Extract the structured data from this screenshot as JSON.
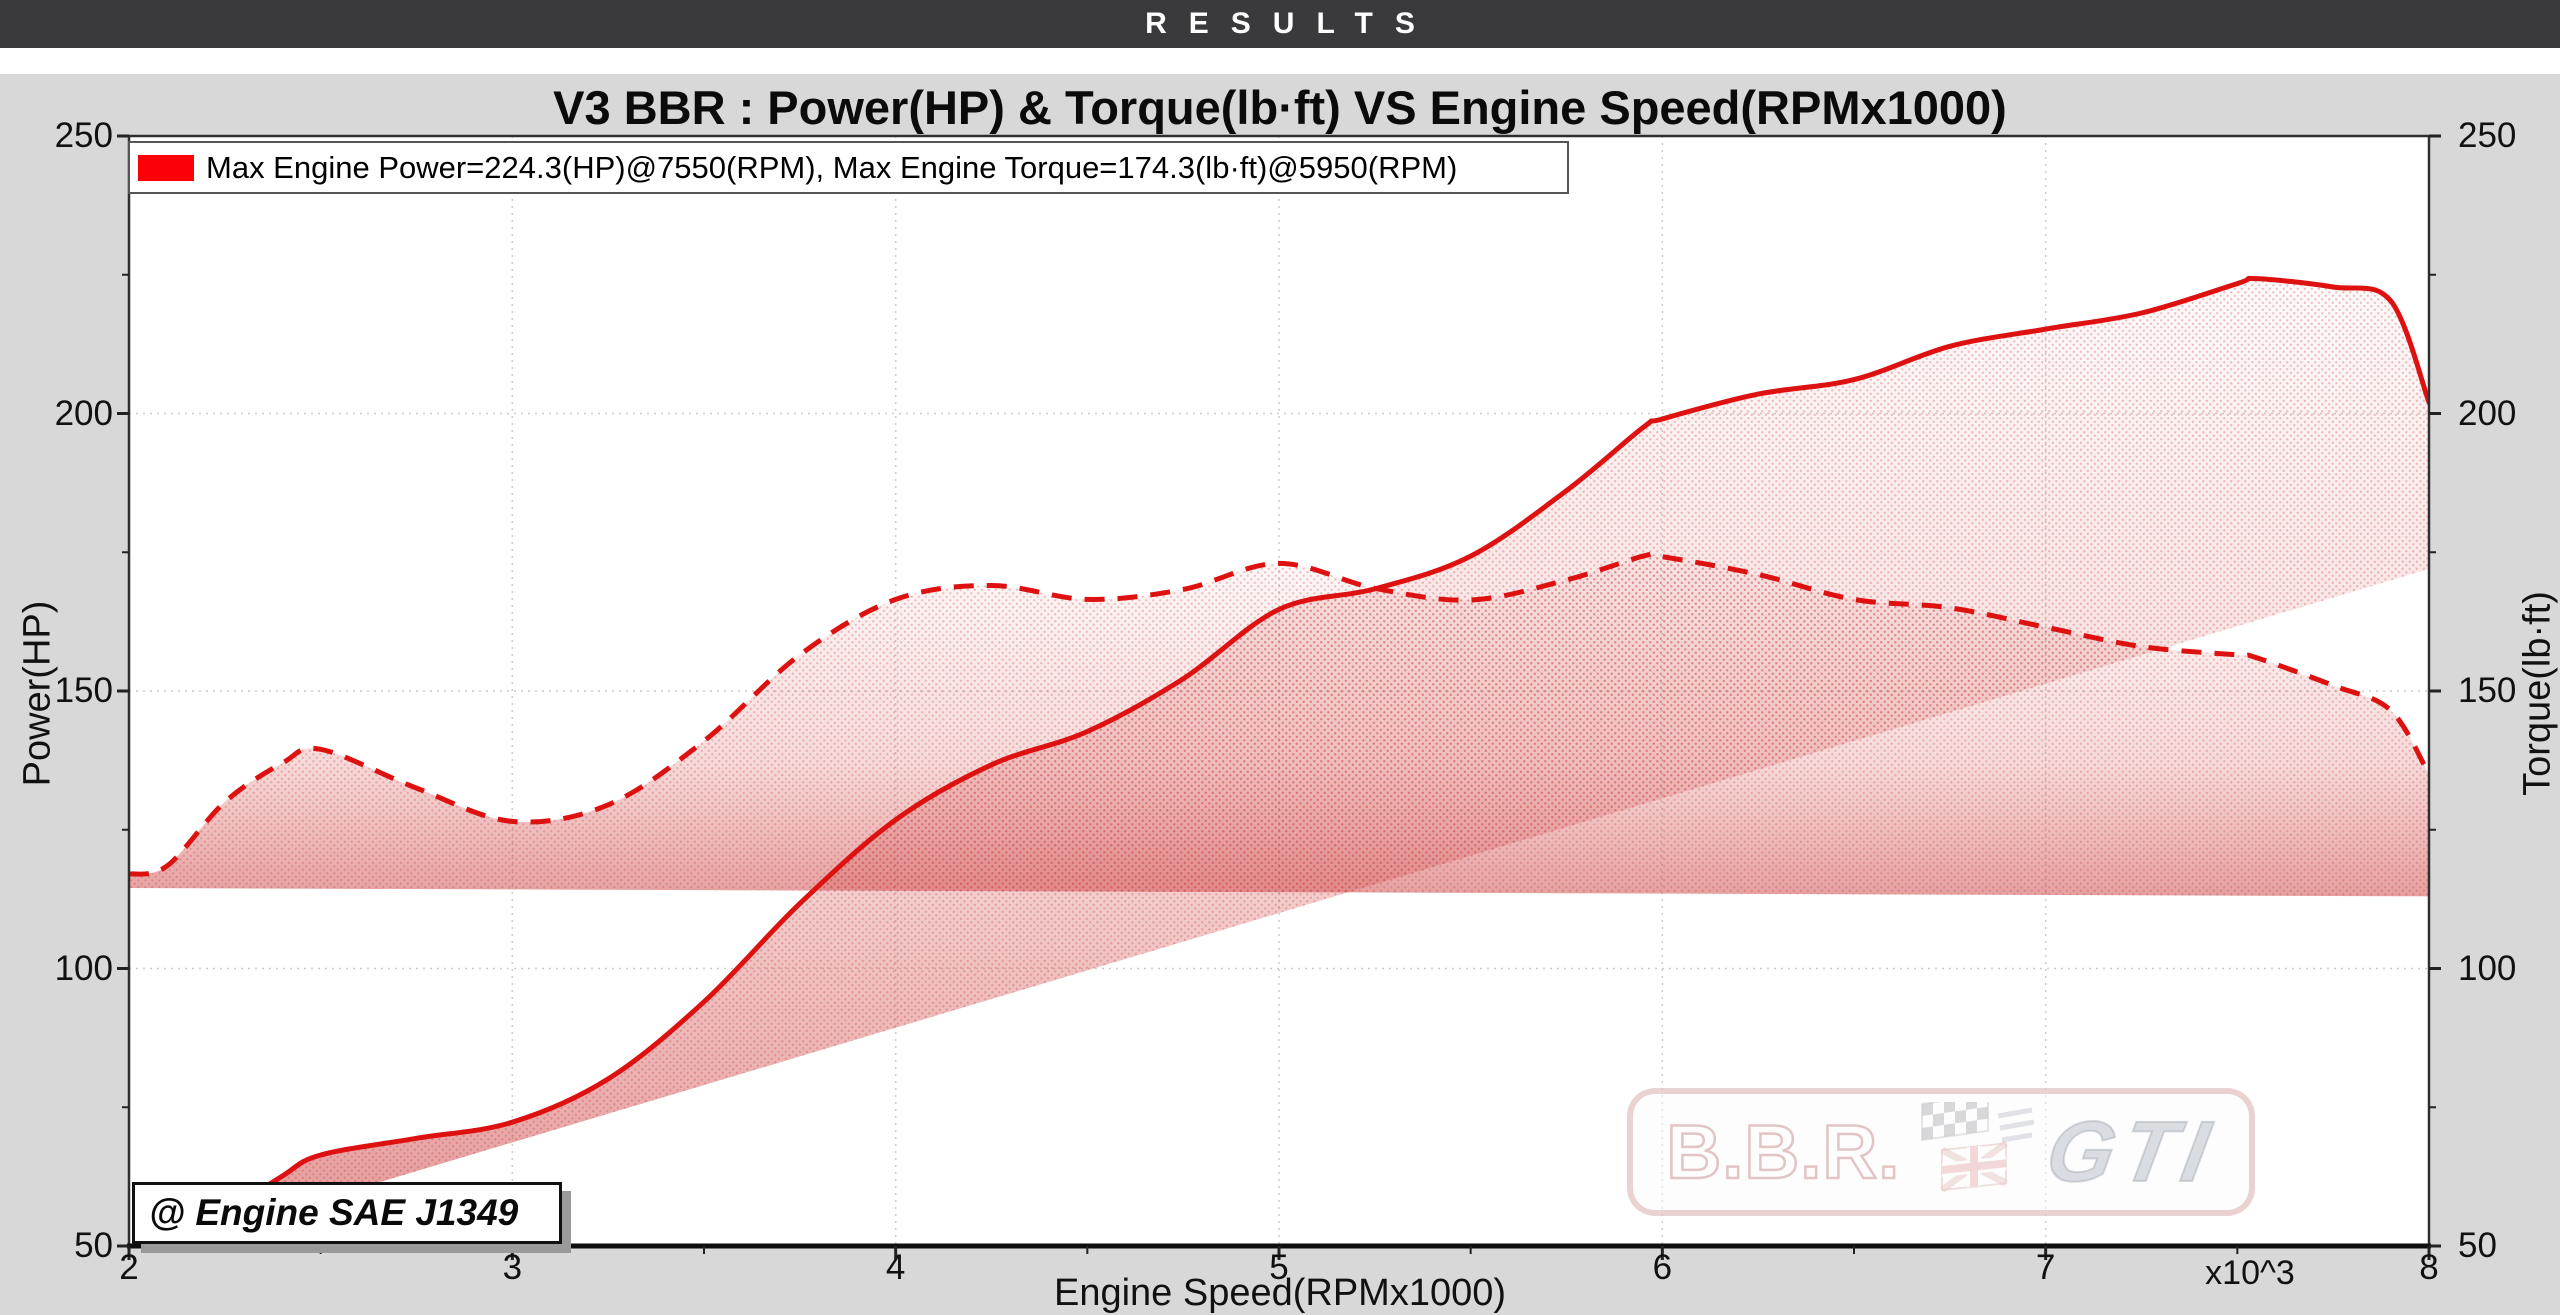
{
  "header": {
    "title": "RESULTS"
  },
  "chart": {
    "title": "V3 BBR : Power(HP) & Torque(lb·ft) VS Engine Speed(RPMx1000)",
    "legend": {
      "text": "Max Engine Power=224.3(HP)@7550(RPM), Max Engine Torque=174.3(lb·ft)@5950(RPM)",
      "swatch_color": "#fb0007"
    },
    "annotation_box": "@ Engine SAE J1349",
    "axis_multiplier_label": "x10^3",
    "x_label": "Engine Speed(RPMx1000)",
    "y_left_label": "Power(HP)",
    "y_right_label": "Torque(lb·ft)"
  },
  "watermark": {
    "text_left": "B.B.R.",
    "text_right": "GTI",
    "icons": [
      "checkered-flag-icon",
      "union-jack-icon",
      "speed-lines-icon"
    ]
  },
  "colors": {
    "page_background": "#d8d8d8",
    "header_bar": "#3a3a3c",
    "plot_background": "#ffffff",
    "curve_red": "#de1111",
    "grid": "#cccccc",
    "spine": "#2f2f2f",
    "fill_red": "#cc3a3a"
  },
  "chart_data": {
    "type": "line",
    "title": "V3 BBR : Power(HP) & Torque(lb·ft) VS Engine Speed(RPMx1000)",
    "x_label": "Engine Speed(RPMx1000)",
    "x": [
      2,
      2.1,
      2.25,
      2.4,
      2.5,
      2.75,
      3,
      3.25,
      3.5,
      3.75,
      4,
      4.25,
      4.5,
      4.75,
      5,
      5.25,
      5.5,
      5.75,
      5.95,
      6,
      6.25,
      6.5,
      6.75,
      7,
      7.25,
      7.5,
      7.55,
      7.75,
      7.9,
      8
    ],
    "series": [
      {
        "name": "Power(HP)",
        "line_style": "solid",
        "color": "#de1111",
        "values": [
          44.6,
          47.4,
          55.7,
          62.6,
          66.4,
          69.4,
          72.3,
          80.1,
          94.0,
          111.7,
          126.8,
          136.7,
          142.7,
          152.2,
          164.7,
          168.4,
          174.3,
          186.1,
          197.5,
          199.0,
          203.5,
          206.1,
          212.1,
          215.2,
          218.1,
          223.4,
          224.3,
          222.8,
          220.3,
          202.0
        ]
      },
      {
        "name": "Torque(lb·ft)",
        "line_style": "dashed",
        "color": "#de1111",
        "values": [
          117.0,
          118.5,
          130.0,
          137.0,
          139.5,
          132.5,
          126.5,
          129.5,
          141.0,
          156.5,
          166.5,
          169.0,
          166.5,
          168.3,
          173.0,
          168.5,
          166.4,
          170.0,
          174.3,
          174.2,
          171.0,
          166.5,
          165.0,
          161.5,
          158.0,
          156.5,
          156.0,
          151.0,
          146.5,
          135.0
        ]
      }
    ],
    "max_power": {
      "hp": 224.3,
      "rpm": 7550
    },
    "max_torque": {
      "lbft": 174.3,
      "rpm": 5950
    },
    "x_axis": {
      "min": 2,
      "max": 8,
      "ticks": [
        "2",
        "3",
        "4",
        "5",
        "6",
        "7",
        "8"
      ],
      "minor_tick_step": 0.5,
      "multiplier": "x10^3"
    },
    "y_axis": {
      "min": 50,
      "max": 250,
      "ticks": [
        "50",
        "100",
        "150",
        "200",
        "250"
      ],
      "minor_tick_step": 25,
      "left_label": "Power(HP)",
      "right_label": "Torque(lb·ft)"
    },
    "grid": {
      "x_lines": [
        3,
        4,
        5,
        6,
        7
      ],
      "y_lines": [
        100,
        150,
        200
      ],
      "style": "dotted"
    },
    "legend_position": "top-left",
    "power_fill_lower_line": {
      "x": [
        2,
        8
      ],
      "v": [
        48,
        172
      ]
    },
    "torque_fill_baseline": {
      "x": [
        2,
        8
      ],
      "v": [
        114.5,
        113
      ]
    }
  }
}
